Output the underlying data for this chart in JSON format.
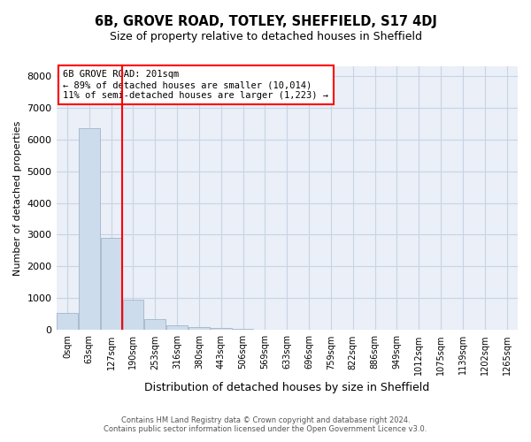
{
  "title": "6B, GROVE ROAD, TOTLEY, SHEFFIELD, S17 4DJ",
  "subtitle": "Size of property relative to detached houses in Sheffield",
  "xlabel": "Distribution of detached houses by size in Sheffield",
  "ylabel": "Number of detached properties",
  "bar_color": "#ccdcec",
  "bar_edge_color": "#aabccc",
  "categories": [
    "0sqm",
    "63sqm",
    "127sqm",
    "190sqm",
    "253sqm",
    "316sqm",
    "380sqm",
    "443sqm",
    "506sqm",
    "569sqm",
    "633sqm",
    "696sqm",
    "759sqm",
    "822sqm",
    "886sqm",
    "949sqm",
    "1012sqm",
    "1075sqm",
    "1139sqm",
    "1202sqm",
    "1265sqm"
  ],
  "values": [
    550,
    6350,
    2900,
    950,
    350,
    150,
    100,
    60,
    40,
    0,
    0,
    0,
    0,
    0,
    0,
    0,
    0,
    0,
    0,
    0,
    0
  ],
  "annotation_text_line1": "6B GROVE ROAD: 201sqm",
  "annotation_text_line2": "← 89% of detached houses are smaller (10,014)",
  "annotation_text_line3": "11% of semi-detached houses are larger (1,223) →",
  "ylim": [
    0,
    8300
  ],
  "grid_color": "#c8d4e4",
  "background_color": "#eaeff8",
  "footer_line1": "Contains HM Land Registry data © Crown copyright and database right 2024.",
  "footer_line2": "Contains public sector information licensed under the Open Government Licence v3.0.",
  "title_fontsize": 10.5,
  "subtitle_fontsize": 9,
  "xlabel_fontsize": 9,
  "ylabel_fontsize": 8,
  "tick_fontsize": 7,
  "annotation_fontsize": 7.5,
  "footer_fontsize": 6
}
